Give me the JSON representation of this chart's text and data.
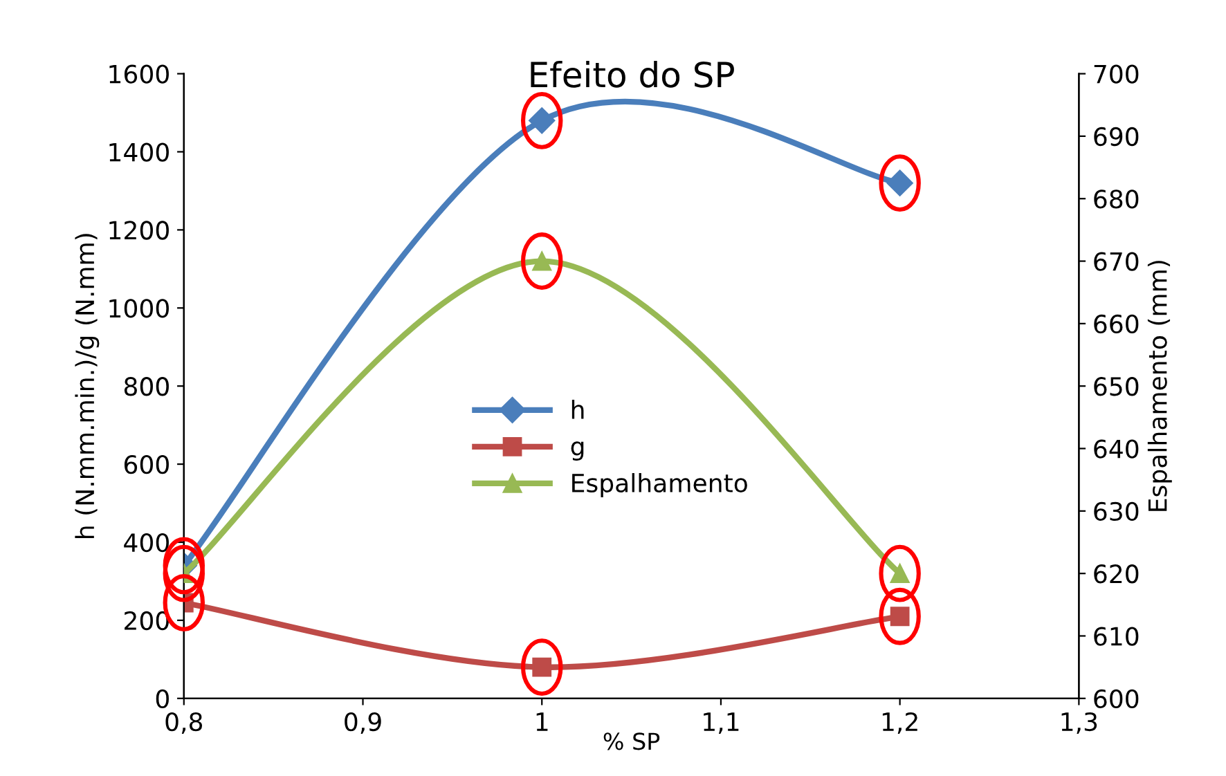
{
  "chart_data": {
    "type": "line",
    "title": "Efeito do SP",
    "xlabel": "% SP",
    "ylabel": "h (N.mm.min.)/g (N.mm)",
    "y2label": "Espalhamento (mm)",
    "x": [
      0.8,
      1.0,
      1.2
    ],
    "series": [
      {
        "name": "h",
        "color": "#4a7ebb",
        "values": [
          340,
          1480,
          1320
        ],
        "marker": "diamond"
      },
      {
        "name": "g",
        "color": "#be4b48",
        "values": [
          245,
          80,
          210
        ],
        "marker": "square"
      },
      {
        "name": "Espalhamento",
        "color": "#98b954",
        "values": [
          620,
          670,
          620
        ],
        "marker": "triangle",
        "axis": "y2"
      }
    ],
    "xlim": [
      0.8,
      1.3
    ],
    "xticks": [
      {
        "value": 0.8,
        "label": "0,8"
      },
      {
        "value": 0.9,
        "label": "0,9"
      },
      {
        "value": 1.0,
        "label": "1"
      },
      {
        "value": 1.1,
        "label": "1,1"
      },
      {
        "value": 1.2,
        "label": "1,2"
      },
      {
        "value": 1.3,
        "label": "1,3"
      }
    ],
    "ylim": [
      0,
      1600
    ],
    "yticks": [
      0,
      200,
      400,
      600,
      800,
      1000,
      1200,
      1400,
      1600
    ],
    "y2lim": [
      600,
      700
    ],
    "y2ticks": [
      600,
      610,
      620,
      630,
      640,
      650,
      660,
      670,
      680,
      690,
      700
    ],
    "legend": "center left",
    "grid": false,
    "line_style": "solid"
  }
}
